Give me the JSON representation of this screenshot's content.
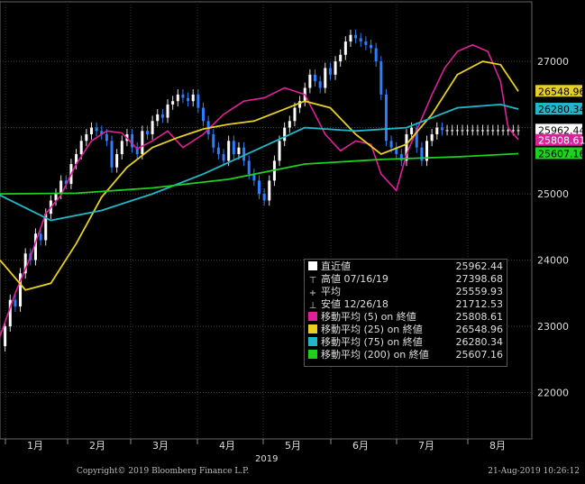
{
  "chart_data": {
    "type": "line",
    "x_axis": {
      "months": [
        "1月",
        "2月",
        "3月",
        "4月",
        "5月",
        "6月",
        "7月",
        "8月"
      ],
      "year_label": "2019"
    },
    "y_axis": {
      "ticks": [
        "27000",
        "26000",
        "25000",
        "24000",
        "23000",
        "22000"
      ],
      "ylim": [
        21300,
        27900
      ]
    },
    "grid": true,
    "series": [
      {
        "name": "移動平均 (5)",
        "color": "#e0209a",
        "x": [
          0,
          6,
          12,
          18,
          24,
          30,
          36,
          42,
          48,
          54,
          60,
          66,
          72,
          80,
          88,
          96,
          104,
          112,
          120,
          128,
          134,
          140,
          146,
          150,
          156,
          160,
          165,
          170,
          175,
          180,
          186,
          192,
          197,
          200,
          204
        ],
        "values": [
          22850,
          23500,
          24050,
          24700,
          24980,
          25450,
          25800,
          25950,
          25920,
          25680,
          25800,
          25950,
          25700,
          25900,
          26200,
          26400,
          26450,
          26600,
          26500,
          25900,
          25650,
          25800,
          25750,
          25300,
          25050,
          25600,
          26050,
          26500,
          26900,
          27150,
          27250,
          27150,
          26700,
          26000,
          25820
        ]
      },
      {
        "name": "移動平均 (25)",
        "color": "#e8d020",
        "x": [
          0,
          10,
          20,
          30,
          40,
          50,
          60,
          70,
          80,
          90,
          100,
          110,
          120,
          130,
          140,
          150,
          160,
          170,
          180,
          190,
          197,
          204
        ],
        "values": [
          24000,
          23550,
          23650,
          24250,
          24950,
          25400,
          25700,
          25850,
          25980,
          26050,
          26100,
          26250,
          26400,
          26300,
          25900,
          25600,
          25750,
          26200,
          26800,
          27000,
          26950,
          26550
        ]
      },
      {
        "name": "移動平均 (75)",
        "color": "#20b8c8",
        "x": [
          0,
          20,
          40,
          60,
          80,
          100,
          120,
          140,
          160,
          180,
          197,
          204
        ],
        "values": [
          24980,
          24600,
          24750,
          25000,
          25300,
          25650,
          26000,
          25950,
          26000,
          26300,
          26350,
          26280
        ]
      },
      {
        "name": "移動平均 (200)",
        "color": "#20d020",
        "x": [
          0,
          30,
          60,
          90,
          120,
          150,
          180,
          204
        ],
        "values": [
          25000,
          25010,
          25090,
          25220,
          25450,
          25520,
          25560,
          25607
        ]
      },
      {
        "name": "直近値",
        "color": "#2a7fff",
        "x": [
          0,
          2,
          4,
          6,
          8,
          10,
          12,
          14,
          16,
          18,
          20,
          22,
          24,
          26,
          28,
          30,
          32,
          34,
          36,
          38,
          40,
          42,
          44,
          46,
          48,
          50,
          52,
          54,
          56,
          58,
          60,
          62,
          64,
          66,
          68,
          70,
          72,
          74,
          76,
          78,
          80,
          82,
          84,
          86,
          88,
          90,
          92,
          94,
          96,
          98,
          100,
          102,
          104,
          106,
          108,
          110,
          112,
          114,
          116,
          118,
          120,
          122,
          124,
          126,
          128,
          130,
          132,
          134,
          136,
          138,
          140,
          142,
          144,
          146,
          148,
          150,
          152,
          154,
          156,
          158,
          160,
          162,
          164,
          166,
          168,
          170,
          172,
          174,
          176,
          178,
          180,
          182,
          184,
          186,
          188,
          190,
          192,
          194,
          196,
          198,
          200,
          202,
          204
        ],
        "values": [
          22700,
          23000,
          23400,
          23300,
          23800,
          24100,
          24000,
          24400,
          24300,
          24700,
          24900,
          25000,
          25200,
          25150,
          25450,
          25600,
          25800,
          25900,
          26000,
          25950,
          25900,
          25800,
          25400,
          25600,
          25800,
          25900,
          25700,
          25600,
          25950,
          25900,
          26100,
          26200,
          26150,
          26350,
          26400,
          26500,
          26450,
          26400,
          26500,
          26300,
          26100,
          25900,
          25700,
          25600,
          25500,
          25800,
          25600,
          25700,
          25500,
          25300,
          25200,
          25000,
          24900,
          25200,
          25500,
          25800,
          26000,
          26100,
          26300,
          26400,
          26600,
          26800,
          26700,
          26600,
          26900,
          26800,
          27000,
          27100,
          27300,
          27400,
          27350,
          27300,
          27250,
          27200,
          27000,
          26500,
          25800,
          25700,
          25600,
          25500,
          25900,
          26000,
          25700,
          25500,
          25800,
          25900,
          26000,
          25962,
          25962,
          25962,
          25962,
          25962,
          25962,
          25962,
          25962,
          25962,
          25962,
          25962,
          25962,
          25962,
          25962,
          25962,
          25962
        ]
      }
    ],
    "x_domain": [
      0,
      204
    ],
    "price_tags": [
      {
        "text": "26548.96",
        "value": 26548.96,
        "bg": "#e8d020",
        "fg": "#000"
      },
      {
        "text": "26280.34",
        "value": 26280.34,
        "bg": "#20b8c8",
        "fg": "#000"
      },
      {
        "text": "25962.44",
        "value": 25962.44,
        "bg": "#ffffff",
        "fg": "#000"
      },
      {
        "text": "25808.61",
        "value": 25808.61,
        "bg": "#e0209a",
        "fg": "#fff"
      },
      {
        "text": "25607.16",
        "value": 25607.16,
        "bg": "#20d020",
        "fg": "#000"
      }
    ],
    "legend": {
      "placement": "bottom-right",
      "rows": [
        {
          "symbol": "square",
          "color": "#ffffff",
          "label": "直近値",
          "value": "25962.44"
        },
        {
          "symbol": "glyph",
          "glyph": "⊤",
          "color": "#cccccc",
          "label": "高値 07/16/19",
          "value": "27398.68"
        },
        {
          "symbol": "glyph",
          "glyph": "+",
          "color": "#cccccc",
          "label": "平均",
          "value": "25559.93"
        },
        {
          "symbol": "glyph",
          "glyph": "⊥",
          "color": "#cccccc",
          "label": "安値 12/26/18",
          "value": "21712.53"
        },
        {
          "symbol": "square",
          "color": "#e0209a",
          "label": "移動平均 (5)  on 終値",
          "value": "25808.61"
        },
        {
          "symbol": "square",
          "color": "#e8d020",
          "label": "移動平均 (25)  on 終値",
          "value": "26548.96"
        },
        {
          "symbol": "square",
          "color": "#20b8c8",
          "label": "移動平均 (75)  on 終値",
          "value": "26280.34"
        },
        {
          "symbol": "square",
          "color": "#20d020",
          "label": "移動平均 (200)  on 終値",
          "value": "25607.16"
        }
      ]
    }
  },
  "footer": {
    "copyright": "Copyright© 2019 Bloomberg Finance L.P.",
    "timestamp": "21-Aug-2019 10:26:12"
  }
}
